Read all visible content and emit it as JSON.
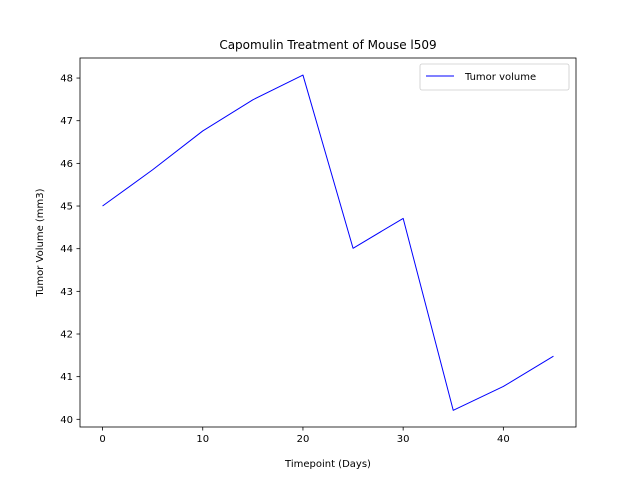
{
  "chart_data": {
    "type": "line",
    "title": "Capomulin Treatment of Mouse l509",
    "xlabel": "Timepoint (Days)",
    "ylabel": "Tumor Volume (mm3)",
    "xlim": [
      -2.25,
      47.25
    ],
    "ylim": [
      39.82,
      48.47
    ],
    "xticks": [
      0,
      10,
      20,
      30,
      40
    ],
    "yticks": [
      40,
      41,
      42,
      43,
      44,
      45,
      46,
      47,
      48
    ],
    "grid": false,
    "legend_position": "top-right",
    "series": [
      {
        "name": "Tumor volume",
        "color": "#0000ff",
        "x": [
          0,
          5,
          10,
          15,
          20,
          25,
          30,
          35,
          40,
          45
        ],
        "y": [
          45.0,
          45.85,
          46.76,
          47.49,
          48.07,
          44.01,
          44.71,
          40.21,
          40.77,
          41.48
        ]
      }
    ]
  }
}
